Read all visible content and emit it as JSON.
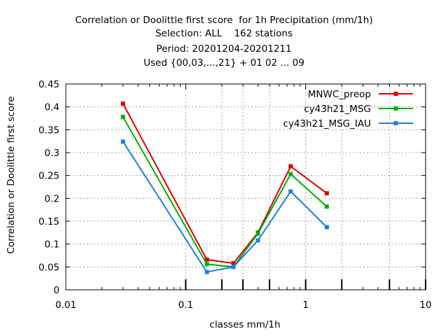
{
  "chart_data": {
    "type": "line",
    "title_lines": [
      "Correlation or Doolittle first score  for 1h Precipitation (mm/1h)",
      "Selection: ALL    162 stations",
      "Period: 20201204-20201211",
      "Used {00,03,...,21} + 01 02 ... 09"
    ],
    "xlabel": "classes mm/1h",
    "ylabel": "Correlation or Doolittle first score",
    "x_scale": "log",
    "xlim": [
      0.01,
      10
    ],
    "ylim": [
      0,
      0.45
    ],
    "x_ticks": [
      0.01,
      0.1,
      1,
      10
    ],
    "x_tick_labels": [
      "0.01",
      "0.1",
      "1",
      "10"
    ],
    "y_ticks": [
      0,
      0.05,
      0.1,
      0.15,
      0.2,
      0.25,
      0.3,
      0.35,
      0.4,
      0.45
    ],
    "y_tick_labels": [
      "0",
      "0.05",
      "0.1",
      "0.15",
      "0.2",
      "0.25",
      "0.3",
      "0.35",
      "0.4",
      "0.45"
    ],
    "class_markers": [
      0.1,
      0.2,
      0.3,
      0.5,
      1,
      2,
      5,
      10
    ],
    "grid": true,
    "legend_position": "top-right",
    "x": [
      0.03,
      0.15,
      0.25,
      0.4,
      0.75,
      1.5
    ],
    "series": [
      {
        "name": "MNWC_preop",
        "color": "#e00000",
        "values": [
          0.407,
          0.066,
          0.058,
          0.125,
          0.27,
          0.211
        ]
      },
      {
        "name": "cy43h21_MSG",
        "color": "#00b000",
        "values": [
          0.378,
          0.056,
          0.05,
          0.123,
          0.253,
          0.182
        ]
      },
      {
        "name": "cy43h21_MSG_IAU",
        "color": "#1b7fe6",
        "values": [
          0.324,
          0.039,
          0.05,
          0.108,
          0.215,
          0.137
        ]
      }
    ]
  }
}
